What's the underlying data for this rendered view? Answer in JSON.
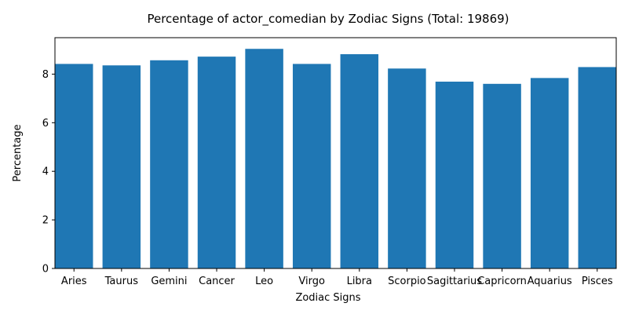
{
  "chart_data": {
    "type": "bar",
    "title": "Percentage of actor_comedian by Zodiac Signs (Total: 19869)",
    "xlabel": "Zodiac Signs",
    "ylabel": "Percentage",
    "categories": [
      "Aries",
      "Taurus",
      "Gemini",
      "Cancer",
      "Leo",
      "Virgo",
      "Libra",
      "Scorpio",
      "Sagittarius",
      "Capricorn",
      "Aquarius",
      "Pisces"
    ],
    "values": [
      8.42,
      8.36,
      8.57,
      8.72,
      9.04,
      8.42,
      8.82,
      8.23,
      7.69,
      7.6,
      7.84,
      8.29
    ],
    "ylim": [
      0,
      9.5
    ],
    "yticks": [
      0,
      2,
      4,
      6,
      8
    ],
    "bar_color": "#1f77b4",
    "grid": false,
    "legend": "none"
  }
}
